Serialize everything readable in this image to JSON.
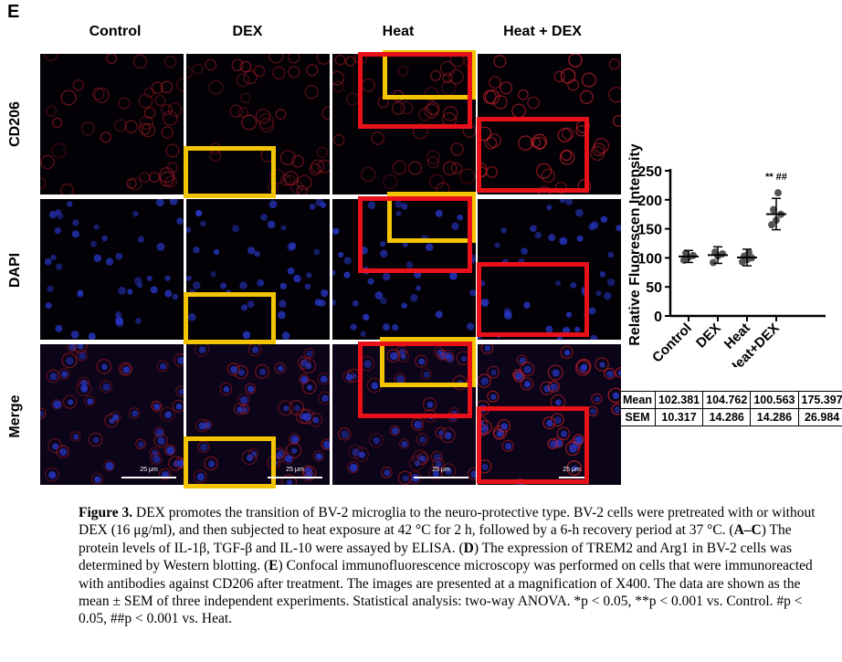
{
  "panel_letter": "E",
  "columns": [
    "Control",
    "DEX",
    "Heat",
    "Heat + DEX"
  ],
  "rows": [
    "CD206",
    "DAPI",
    "Merge"
  ],
  "scale_bar_label": "25 μm",
  "colors": {
    "cd206_stain": "#c0202a",
    "dapi_stain": "#2a3ad0",
    "highlight_yellow": "#f3c400",
    "highlight_red": "#e8111a"
  },
  "chart_data": {
    "type": "scatter",
    "categories": [
      "Control",
      "DEX",
      "Heat",
      "Heat+DEX"
    ],
    "ylabel": "Relative Fluorescen Intensity",
    "ylim": [
      0,
      250
    ],
    "yticks": [
      0,
      50,
      100,
      150,
      200,
      250
    ],
    "points": [
      [
        96,
        101,
        104,
        108
      ],
      [
        92,
        103,
        107,
        110
      ],
      [
        93,
        97,
        100,
        103,
        109
      ],
      [
        157,
        165,
        175,
        183,
        212
      ]
    ],
    "mean": [
      102.381,
      104.762,
      100.563,
      175.397
    ],
    "sem": [
      10.317,
      14.286,
      14.286,
      26.984
    ],
    "annotation": "** ##"
  },
  "stats_table": {
    "rows": [
      [
        "Mean",
        "102.381",
        "104.762",
        "100.563",
        "175.397"
      ],
      [
        "SEM",
        "10.317",
        "14.286",
        "14.286",
        "26.984"
      ]
    ]
  },
  "caption": {
    "fig_label": "Figure 3.",
    "text_1": " DEX promotes the transition of BV-2 microglia to the neuro-protective type. BV-2 cells were pretreated with or without DEX (16 μg/ml), and then subjected to heat exposure at 42 °C for 2 h, followed by a 6-h recovery period at 37 °C. (",
    "ref_ac": "A–C",
    "text_2": ") The protein levels of IL-1β, TGF-β and IL-10 were assayed by ELISA. (",
    "ref_d": "D",
    "text_3": ") The expression of TREM2 and Arg1 in BV-2 cells was determined by Western blotting. (",
    "ref_e": "E",
    "text_4": ") Confocal immunofluorescence microscopy was performed on cells that were immunoreacted with antibodies against CD206 after treatment. The images are presented at a magnification of X400. The data are shown as the mean ± SEM of three independent experiments. Statistical analysis: two-way ANOVA. *p < 0.05, **p < 0.001 vs. Control. #p < 0.05, ##p < 0.001 vs. Heat."
  }
}
